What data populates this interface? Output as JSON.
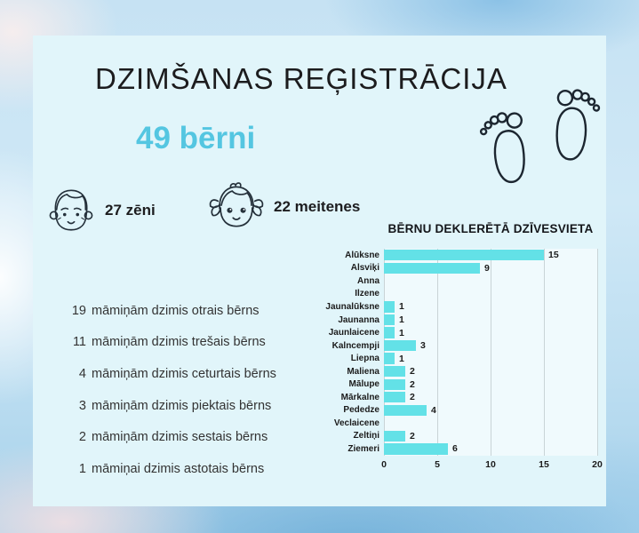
{
  "header": {
    "title": "DZIMŠANAS REĢISTRĀCIJA",
    "total": "49 bērni"
  },
  "genders": {
    "boys": "27 zēni",
    "girls": "22 meitenes"
  },
  "icons": {
    "boy": "boy-face-icon",
    "girl": "girl-face-icon",
    "feet": "baby-feet-icon"
  },
  "facts": [
    {
      "count": "19",
      "text": "māmiņām dzimis otrais bērns"
    },
    {
      "count": "11",
      "text": "māmiņām dzimis trešais bērns"
    },
    {
      "count": "4",
      "text": "māmiņām dzimis ceturtais bērns"
    },
    {
      "count": "3",
      "text": "māmiņām dzimis piektais bērns"
    },
    {
      "count": "2",
      "text": "māmiņām dzimis sestais bērns"
    },
    {
      "count": "1",
      "text": "māmiņai dzimis astotais bērns"
    }
  ],
  "chart_data": {
    "type": "bar",
    "orientation": "horizontal",
    "title": "BĒRNU DEKLERĒTĀ DZĪVESVIETA",
    "categories": [
      "Alūksne",
      "Alsviķi",
      "Anna",
      "Ilzene",
      "Jaunalūksne",
      "Jaunanna",
      "Jaunlaicene",
      "Kalncempji",
      "Liepna",
      "Maliena",
      "Mālupe",
      "Mārkalne",
      "Pededze",
      "Veclaicene",
      "Zeltiņi",
      "Ziemeri"
    ],
    "values": [
      15,
      9,
      0,
      0,
      1,
      1,
      1,
      3,
      1,
      2,
      2,
      2,
      4,
      0,
      2,
      6
    ],
    "xlim": [
      0,
      20
    ],
    "xticks": [
      0,
      5,
      10,
      15,
      20
    ],
    "grid": true,
    "legend": false,
    "bar_color": "#63e1e7"
  },
  "colors": {
    "accent_cyan": "#54c6e1",
    "bar_color": "#63e1e7",
    "panel_bg": "#e1f5fa",
    "text_dark": "#1d1d1f"
  }
}
